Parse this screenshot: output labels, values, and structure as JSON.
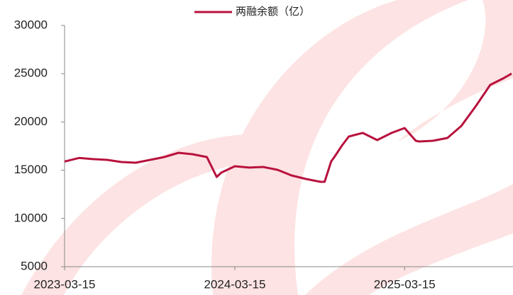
{
  "chart_data": {
    "type": "line",
    "legend_position": "top",
    "x": [
      "2023-03-15",
      "2023-04-15",
      "2023-05-15",
      "2023-06-15",
      "2023-07-15",
      "2023-08-15",
      "2023-09-15",
      "2023-10-15",
      "2023-11-15",
      "2023-12-15",
      "2024-01-15",
      "2024-02-05",
      "2024-02-15",
      "2024-03-15",
      "2024-04-15",
      "2024-05-15",
      "2024-06-15",
      "2024-07-15",
      "2024-08-15",
      "2024-09-15",
      "2024-09-24",
      "2024-10-08",
      "2024-10-15",
      "2024-11-01",
      "2024-11-15",
      "2024-12-15",
      "2025-01-15",
      "2025-02-15",
      "2025-03-15",
      "2025-04-08",
      "2025-04-15",
      "2025-05-15",
      "2025-06-15",
      "2025-07-15",
      "2025-08-15",
      "2025-09-15",
      "2025-10-15",
      "2025-10-31"
    ],
    "series": [
      {
        "name": "两融余额（亿）",
        "color": "#b8123e",
        "values": [
          15900,
          16270,
          16150,
          16070,
          15850,
          15780,
          16070,
          16360,
          16800,
          16660,
          16360,
          14300,
          14750,
          15410,
          15270,
          15340,
          15040,
          14460,
          14090,
          13800,
          13800,
          15900,
          16360,
          17600,
          18490,
          18860,
          18120,
          18860,
          19370,
          18050,
          17980,
          18050,
          18340,
          19590,
          21640,
          23840,
          24570,
          25010
        ]
      }
    ],
    "xlim": [
      "2023-03-15",
      "2025-11-03"
    ],
    "xticks": [
      "2023-03-15",
      "2024-03-15",
      "2025-03-15"
    ],
    "ylim": [
      5000,
      30000
    ],
    "yticks": [
      5000,
      10000,
      15000,
      20000,
      25000,
      30000
    ]
  }
}
